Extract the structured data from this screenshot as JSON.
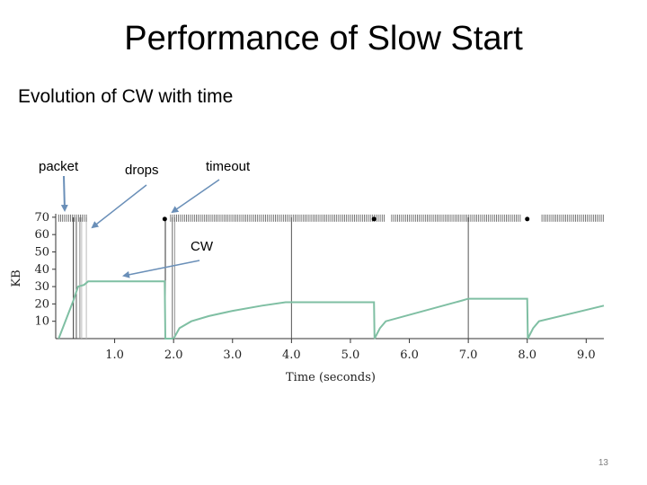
{
  "slide": {
    "title": "Performance of Slow Start",
    "subtitle": "Evolution of CW with time",
    "page_number": "13"
  },
  "chart_data": {
    "type": "line",
    "xlabel": "Time (seconds)",
    "ylabel": "KB",
    "xlim": [
      0,
      9.3
    ],
    "ylim": [
      0,
      72
    ],
    "x_ticks": [
      1.0,
      2.0,
      3.0,
      4.0,
      5.0,
      6.0,
      7.0,
      8.0,
      9.0
    ],
    "x_tick_labels": [
      "1.0",
      "2.0",
      "3.0",
      "4.0",
      "5.0",
      "6.0",
      "7.0",
      "8.0",
      "9.0"
    ],
    "y_ticks": [
      10,
      20,
      30,
      40,
      50,
      60,
      70
    ],
    "y_tick_labels": [
      "10",
      "20",
      "30",
      "40",
      "50",
      "60",
      "70"
    ],
    "series": [
      {
        "color": "#7fbfa3",
        "x": [
          0.05,
          0.3,
          0.38,
          0.48,
          0.55,
          1.85,
          1.86,
          2.0,
          2.1,
          2.3,
          2.6,
          3.0,
          3.5,
          3.9,
          4.0,
          5.4,
          5.41,
          5.5,
          5.6,
          6.9,
          7.0,
          8.0,
          8.01,
          8.1,
          8.2,
          9.3
        ],
        "y": [
          0,
          22,
          30,
          31,
          33,
          33,
          0,
          0,
          6,
          10,
          13,
          16,
          19,
          21,
          21,
          21,
          0,
          6,
          10,
          22,
          23,
          23,
          0,
          6,
          10,
          19
        ]
      }
    ],
    "packet_marks": [
      {
        "x_start": 0.05,
        "x_end": 0.55
      },
      {
        "x_start": 1.95,
        "x_end": 5.6
      },
      {
        "x_start": 5.7,
        "x_end": 7.9
      },
      {
        "x_start": 8.25,
        "x_end": 9.3
      }
    ],
    "timeout_dots": [
      1.85,
      5.4,
      8.0
    ],
    "vertical_lines": [
      {
        "x": 0.3,
        "color": "#333333"
      },
      {
        "x": 0.35,
        "color": "#555555"
      },
      {
        "x": 0.41,
        "color": "#888888"
      },
      {
        "x": 0.44,
        "color": "#bbbbbb"
      },
      {
        "x": 0.52,
        "color": "#bbbbbb"
      },
      {
        "x": 1.86,
        "color": "#333333"
      },
      {
        "x": 1.98,
        "color": "#666666"
      },
      {
        "x": 2.02,
        "color": "#999999"
      },
      {
        "x": 4.0,
        "color": "#555555"
      },
      {
        "x": 7.0,
        "color": "#555555"
      }
    ],
    "annotations": [
      {
        "text": "packet",
        "arrow": true
      },
      {
        "text": "drops",
        "arrow": true
      },
      {
        "text": "timeout",
        "arrow": true
      },
      {
        "text": "CW",
        "arrow": true
      }
    ]
  }
}
